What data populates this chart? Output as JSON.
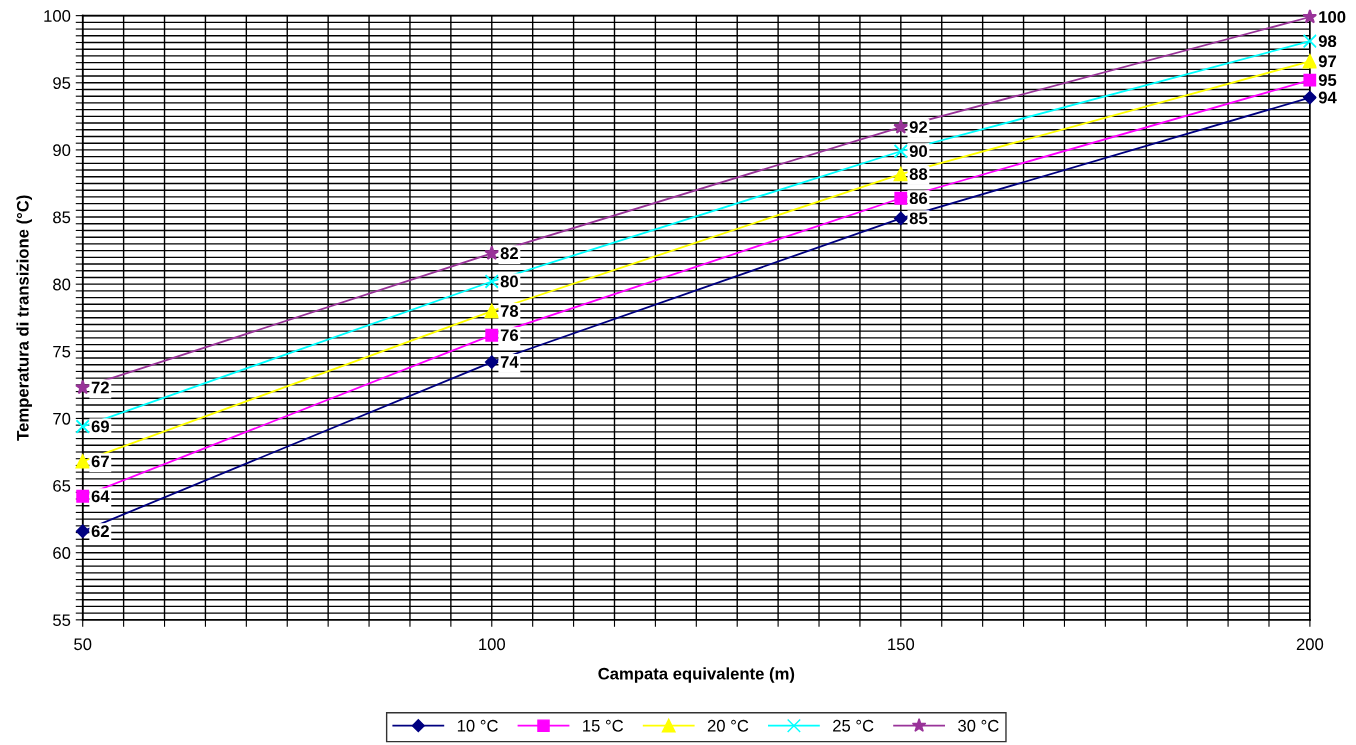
{
  "chart_data": {
    "type": "line",
    "xlabel": "Campata equivalente (m)",
    "ylabel": "Temperatura di transizione (°C)",
    "x": [
      50,
      100,
      150,
      200
    ],
    "series": [
      {
        "name": "10 °C",
        "color": "#000080",
        "marker": "diamond",
        "values": [
          61.6,
          74.2,
          84.9,
          93.9
        ],
        "value_labels": [
          "62",
          "74",
          "85",
          "94"
        ]
      },
      {
        "name": "15 °C",
        "color": "#ff00ff",
        "marker": "square",
        "values": [
          64.2,
          76.2,
          86.4,
          95.2
        ],
        "value_labels": [
          "64",
          "76",
          "86",
          "95"
        ]
      },
      {
        "name": "20 °C",
        "color": "#ffff00",
        "marker": "triangle",
        "values": [
          66.8,
          78.0,
          88.2,
          96.6
        ],
        "value_labels": [
          "67",
          "78",
          "88",
          "97"
        ]
      },
      {
        "name": "25 °C",
        "color": "#00ffff",
        "marker": "cross",
        "values": [
          69.4,
          80.2,
          89.9,
          98.1
        ],
        "value_labels": [
          "69",
          "80",
          "90",
          "98"
        ]
      },
      {
        "name": "30 °C",
        "color": "#993399",
        "marker": "star",
        "values": [
          72.3,
          82.3,
          91.7,
          99.9
        ],
        "value_labels": [
          "72",
          "82",
          "92",
          "100"
        ]
      }
    ],
    "xlim": [
      50,
      200
    ],
    "xticks": [
      50,
      {
        "value": 55,
        "label": null
      },
      {
        "value": 60,
        "label": null
      },
      {
        "value": 65,
        "label": null
      },
      {
        "value": 70,
        "label": null
      },
      {
        "value": 75,
        "label": null
      },
      {
        "value": 80,
        "label": null
      },
      {
        "value": 85,
        "label": null
      },
      {
        "value": 90,
        "label": null
      },
      {
        "value": 95,
        "label": null
      },
      100,
      {
        "value": 105,
        "label": null
      },
      {
        "value": 110,
        "label": null
      },
      {
        "value": 115,
        "label": null
      },
      {
        "value": 120,
        "label": null
      },
      {
        "value": 125,
        "label": null
      },
      {
        "value": 130,
        "label": null
      },
      {
        "value": 135,
        "label": null
      },
      {
        "value": 140,
        "label": null
      },
      {
        "value": 145,
        "label": null
      },
      150,
      {
        "value": 155,
        "label": null
      },
      {
        "value": 160,
        "label": null
      },
      {
        "value": 165,
        "label": null
      },
      {
        "value": 170,
        "label": null
      },
      {
        "value": 175,
        "label": null
      },
      {
        "value": 180,
        "label": null
      },
      {
        "value": 185,
        "label": null
      },
      {
        "value": 190,
        "label": null
      },
      {
        "value": 195,
        "label": null
      },
      200
    ],
    "ylim": [
      55,
      100
    ],
    "yticks": [
      55,
      {
        "value": 55.5,
        "label": null
      },
      {
        "value": 56,
        "label": null
      },
      {
        "value": 56.5,
        "label": null
      },
      {
        "value": 57,
        "label": null
      },
      {
        "value": 57.5,
        "label": null
      },
      {
        "value": 58,
        "label": null
      },
      {
        "value": 58.5,
        "label": null
      },
      {
        "value": 59,
        "label": null
      },
      {
        "value": 59.5,
        "label": null
      },
      60,
      {
        "value": 60.5,
        "label": null
      },
      {
        "value": 61,
        "label": null
      },
      {
        "value": 61.5,
        "label": null
      },
      {
        "value": 62,
        "label": null
      },
      {
        "value": 62.5,
        "label": null
      },
      {
        "value": 63,
        "label": null
      },
      {
        "value": 63.5,
        "label": null
      },
      {
        "value": 64,
        "label": null
      },
      {
        "value": 64.5,
        "label": null
      },
      65,
      {
        "value": 65.5,
        "label": null
      },
      {
        "value": 66,
        "label": null
      },
      {
        "value": 66.5,
        "label": null
      },
      {
        "value": 67,
        "label": null
      },
      {
        "value": 67.5,
        "label": null
      },
      {
        "value": 68,
        "label": null
      },
      {
        "value": 68.5,
        "label": null
      },
      {
        "value": 69,
        "label": null
      },
      {
        "value": 69.5,
        "label": null
      },
      70,
      {
        "value": 70.5,
        "label": null
      },
      {
        "value": 71,
        "label": null
      },
      {
        "value": 71.5,
        "label": null
      },
      {
        "value": 72,
        "label": null
      },
      {
        "value": 72.5,
        "label": null
      },
      {
        "value": 73,
        "label": null
      },
      {
        "value": 73.5,
        "label": null
      },
      {
        "value": 74,
        "label": null
      },
      {
        "value": 74.5,
        "label": null
      },
      75,
      {
        "value": 75.5,
        "label": null
      },
      {
        "value": 76,
        "label": null
      },
      {
        "value": 76.5,
        "label": null
      },
      {
        "value": 77,
        "label": null
      },
      {
        "value": 77.5,
        "label": null
      },
      {
        "value": 78,
        "label": null
      },
      {
        "value": 78.5,
        "label": null
      },
      {
        "value": 79,
        "label": null
      },
      {
        "value": 79.5,
        "label": null
      },
      80,
      {
        "value": 80.5,
        "label": null
      },
      {
        "value": 81,
        "label": null
      },
      {
        "value": 81.5,
        "label": null
      },
      {
        "value": 82,
        "label": null
      },
      {
        "value": 82.5,
        "label": null
      },
      {
        "value": 83,
        "label": null
      },
      {
        "value": 83.5,
        "label": null
      },
      {
        "value": 84,
        "label": null
      },
      {
        "value": 84.5,
        "label": null
      },
      85,
      {
        "value": 85.5,
        "label": null
      },
      {
        "value": 86,
        "label": null
      },
      {
        "value": 86.5,
        "label": null
      },
      {
        "value": 87,
        "label": null
      },
      {
        "value": 87.5,
        "label": null
      },
      {
        "value": 88,
        "label": null
      },
      {
        "value": 88.5,
        "label": null
      },
      {
        "value": 89,
        "label": null
      },
      {
        "value": 89.5,
        "label": null
      },
      90,
      {
        "value": 90.5,
        "label": null
      },
      {
        "value": 91,
        "label": null
      },
      {
        "value": 91.5,
        "label": null
      },
      {
        "value": 92,
        "label": null
      },
      {
        "value": 92.5,
        "label": null
      },
      {
        "value": 93,
        "label": null
      },
      {
        "value": 93.5,
        "label": null
      },
      {
        "value": 94,
        "label": null
      },
      {
        "value": 94.5,
        "label": null
      },
      95,
      {
        "value": 95.5,
        "label": null
      },
      {
        "value": 96,
        "label": null
      },
      {
        "value": 96.5,
        "label": null
      },
      {
        "value": 97,
        "label": null
      },
      {
        "value": 97.5,
        "label": null
      },
      {
        "value": 98,
        "label": null
      },
      {
        "value": 98.5,
        "label": null
      },
      {
        "value": 99,
        "label": null
      },
      {
        "value": 99.5,
        "label": null
      },
      100
    ],
    "grid": true,
    "legend": "bottom",
    "line_style": "solid"
  }
}
